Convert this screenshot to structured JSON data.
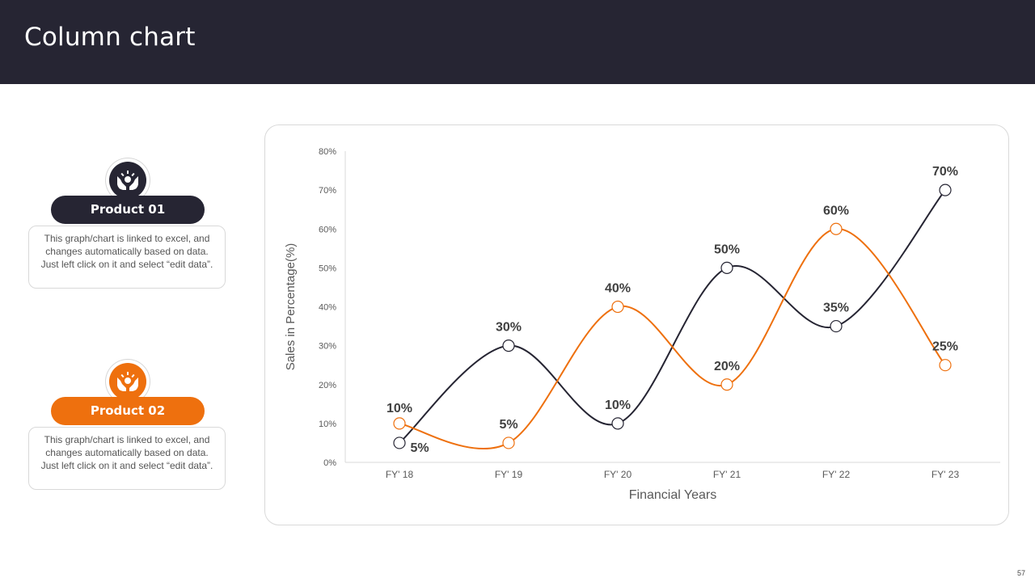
{
  "header": {
    "title": "Column chart"
  },
  "products": [
    {
      "label": "Product 01",
      "icon": "hands-icon",
      "color": "#262533",
      "description": "This graph/chart is linked to excel, and changes automatically based on data. Just left click on it and select “edit data”."
    },
    {
      "label": "Product 02",
      "icon": "hands-icon",
      "color": "#EE700E",
      "description": "This graph/chart is linked to excel, and changes automatically based on data. Just left click on it and select “edit data”."
    }
  ],
  "chart_data": {
    "type": "line",
    "categories": [
      "FY' 18",
      "FY' 19",
      "FY' 20",
      "FY' 21",
      "FY' 22",
      "FY' 23"
    ],
    "series": [
      {
        "color": "#262533",
        "values": [
          5,
          30,
          10,
          50,
          35,
          70
        ]
      },
      {
        "color": "#EE700E",
        "values": [
          10,
          5,
          40,
          20,
          60,
          25
        ]
      }
    ],
    "xlabel": "Financial Years",
    "ylabel": "Sales in Percentage(%)",
    "ylim": [
      0,
      80
    ],
    "yticks": [
      "0%",
      "10%",
      "20%",
      "30%",
      "40%",
      "50%",
      "60%",
      "70%",
      "80%"
    ],
    "value_suffix": "%",
    "smooth": true,
    "grid": false,
    "legend": "none"
  },
  "page_number": "57"
}
